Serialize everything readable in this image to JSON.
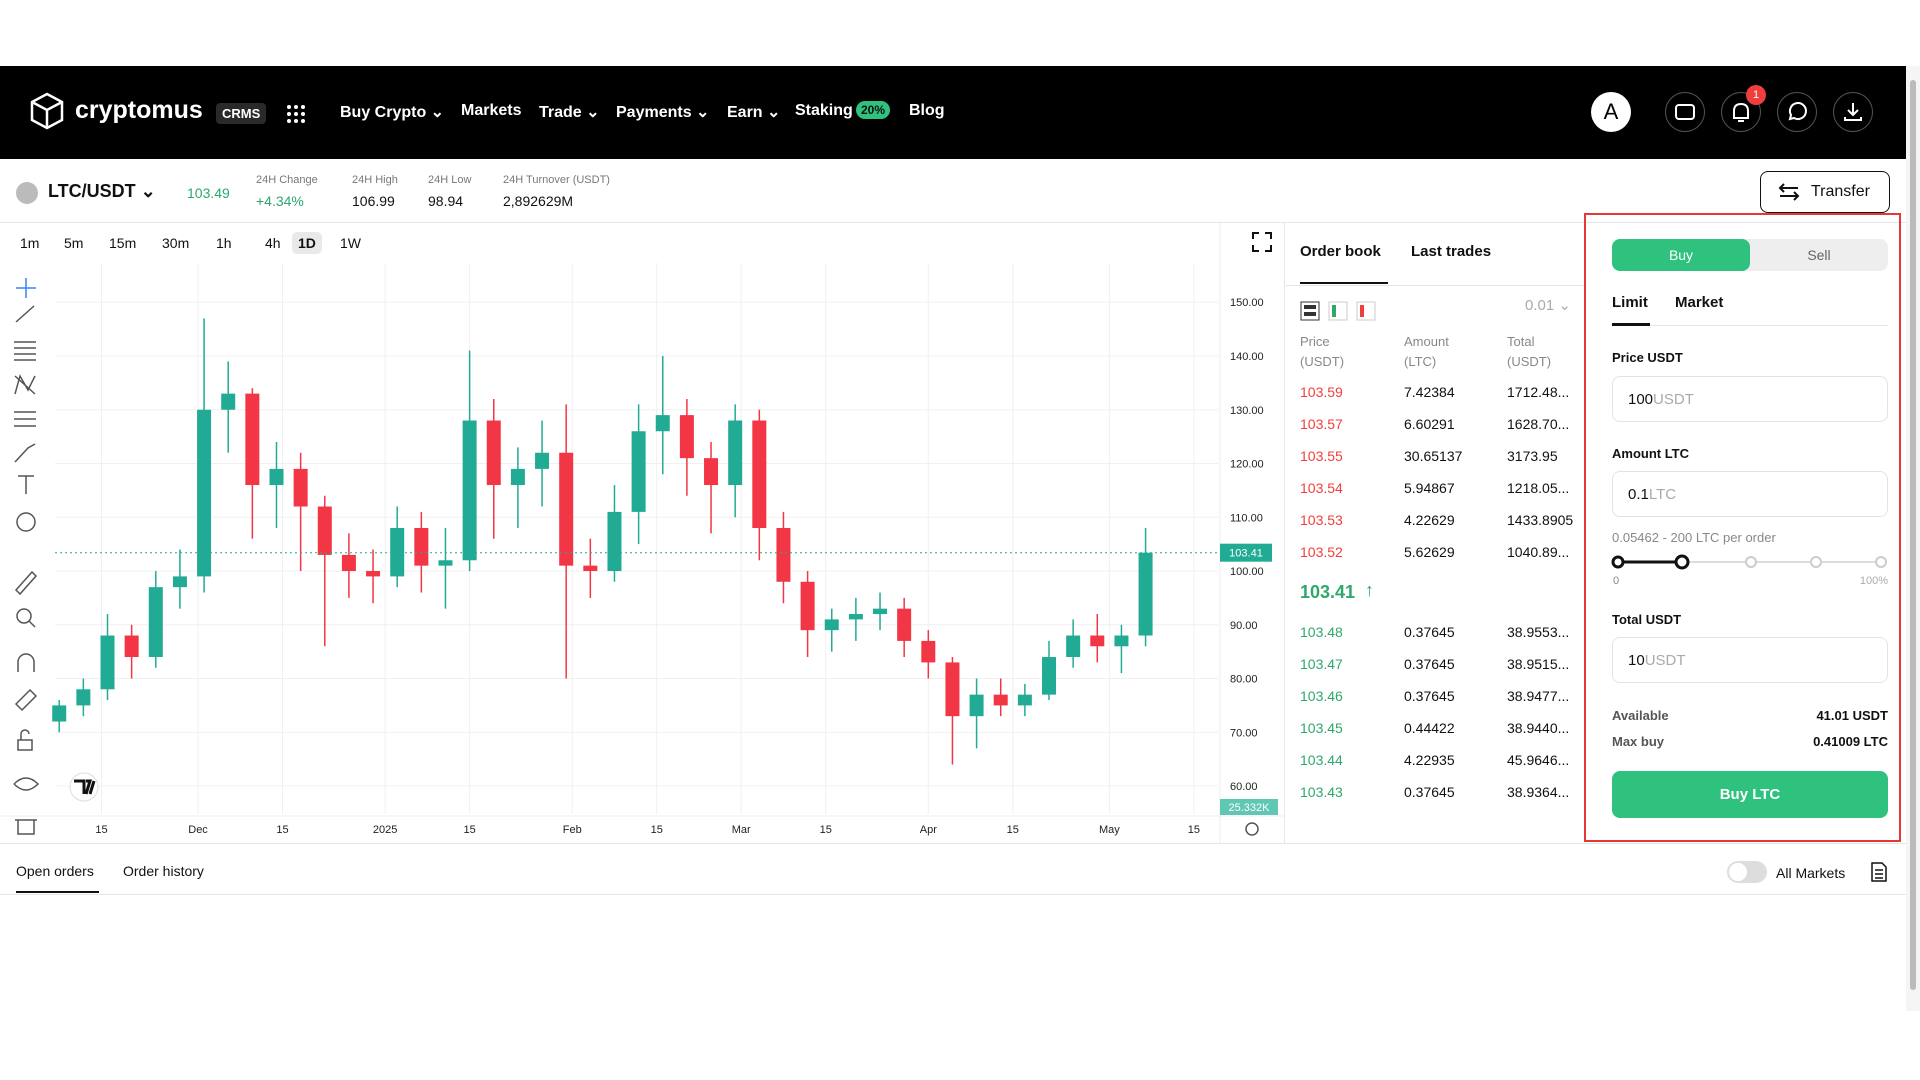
{
  "nav": {
    "logo": "cryptomus",
    "badge": "CRMS",
    "menu": [
      "Buy Crypto",
      "Markets",
      "Trade",
      "Payments",
      "Earn",
      "Staking",
      "Blog"
    ],
    "staking_badge": "20%",
    "avatar": "A",
    "notifications": "1"
  },
  "ticker": {
    "pair": "LTC/USDT",
    "price": "103.49",
    "stats": [
      {
        "label": "24H Change",
        "value": "+4.34%"
      },
      {
        "label": "24H High",
        "value": "106.99"
      },
      {
        "label": "24H Low",
        "value": "98.94"
      },
      {
        "label": "24H Turnover (USDT)",
        "value": "2,892629M"
      }
    ],
    "transfer": "Transfer"
  },
  "timeframes": {
    "items": [
      "1m",
      "5m",
      "15m",
      "30m",
      "1h",
      "4h",
      "1D",
      "1W"
    ],
    "active": "1D"
  },
  "chart_data": {
    "type": "candlestick",
    "up_color": "#22ab94",
    "down_color": "#f23645",
    "x": [
      0,
      4,
      8,
      12,
      16,
      20,
      24,
      28,
      32,
      36,
      40,
      44,
      48,
      52,
      56,
      60,
      64,
      68,
      72,
      76,
      80,
      84,
      88,
      92,
      96,
      100,
      104,
      108,
      112,
      116,
      120,
      124,
      128,
      132,
      136,
      140,
      144,
      148,
      152,
      156,
      160,
      164,
      168,
      172,
      176,
      180
    ],
    "open": [
      72,
      75,
      78,
      88,
      84,
      97,
      99,
      130,
      133,
      116,
      119,
      112,
      103,
      100,
      99,
      108,
      101,
      102,
      128,
      116,
      119,
      122,
      101,
      100,
      111,
      126,
      129,
      121,
      116,
      128,
      108,
      98,
      89,
      91,
      92,
      93,
      87,
      83,
      73,
      77,
      75,
      77,
      84,
      88,
      86,
      88
    ],
    "high": [
      76,
      80,
      92,
      90,
      100,
      104,
      147,
      139,
      134,
      124,
      122,
      114,
      107,
      104,
      112,
      111,
      108,
      141,
      132,
      123,
      128,
      131,
      106,
      116,
      131,
      140,
      132,
      124,
      131,
      130,
      111,
      100,
      93,
      95,
      96,
      95,
      89,
      84,
      80,
      80,
      79,
      87,
      91,
      92,
      90,
      108
    ],
    "low": [
      70,
      73,
      76,
      80,
      82,
      93,
      96,
      122,
      106,
      108,
      100,
      86,
      95,
      94,
      97,
      96,
      93,
      100,
      106,
      108,
      112,
      80,
      95,
      98,
      105,
      118,
      114,
      107,
      110,
      102,
      94,
      84,
      85,
      87,
      89,
      84,
      80,
      64,
      67,
      73,
      73,
      76,
      82,
      83,
      81,
      86
    ],
    "close": [
      75,
      78,
      88,
      84,
      97,
      99,
      130,
      133,
      116,
      119,
      112,
      103,
      100,
      99,
      108,
      101,
      102,
      128,
      116,
      119,
      122,
      101,
      100,
      111,
      126,
      129,
      121,
      116,
      128,
      108,
      98,
      89,
      91,
      92,
      93,
      87,
      83,
      73,
      77,
      75,
      77,
      84,
      88,
      86,
      88,
      103.41
    ],
    "xlim": [
      -0.7,
      192
    ],
    "xticks": [
      {
        "value": 7,
        "label": "15"
      },
      {
        "value": 23,
        "label": "Dec"
      },
      {
        "value": 37,
        "label": "15"
      },
      {
        "value": 54,
        "label": "2025"
      },
      {
        "value": 68,
        "label": "15"
      },
      {
        "value": 85,
        "label": "Feb"
      },
      {
        "value": 99,
        "label": "15"
      },
      {
        "value": 113,
        "label": "Mar"
      },
      {
        "value": 127,
        "label": "15"
      },
      {
        "value": 144,
        "label": "Apr"
      },
      {
        "value": 158,
        "label": "15"
      },
      {
        "value": 174,
        "label": "May"
      },
      {
        "value": 188,
        "label": "15"
      }
    ],
    "ylim": [
      54.8,
      157.3
    ],
    "yticks": [
      {
        "value": 60,
        "label": "60.00"
      },
      {
        "value": 70,
        "label": "70.00"
      },
      {
        "value": 80,
        "label": "80.00"
      },
      {
        "value": 90,
        "label": "90.00"
      },
      {
        "value": 100,
        "label": "100.00"
      },
      {
        "value": 110,
        "label": "110.00"
      },
      {
        "value": 120,
        "label": "120.00"
      },
      {
        "value": 130,
        "label": "130.00"
      },
      {
        "value": 140,
        "label": "140.00"
      },
      {
        "value": 150,
        "label": "150.00"
      }
    ],
    "grid": true,
    "last_price": {
      "value": 103.41,
      "label": "103.41"
    },
    "volume_label": "25.332K"
  },
  "order_book": {
    "tabs": [
      "Order book",
      "Last trades"
    ],
    "step": "0.01",
    "headers": [
      [
        "Price",
        "(USDT)"
      ],
      [
        "Amount",
        "(LTC)"
      ],
      [
        "Total",
        "(USDT)"
      ]
    ],
    "asks": [
      [
        "103.59",
        "7.42384",
        "1712.48..."
      ],
      [
        "103.57",
        "6.60291",
        "1628.70..."
      ],
      [
        "103.55",
        "30.65137",
        "3173.95"
      ],
      [
        "103.54",
        "5.94867",
        "1218.05..."
      ],
      [
        "103.53",
        "4.22629",
        "1433.8905"
      ],
      [
        "103.52",
        "5.62629",
        "1040.89..."
      ]
    ],
    "last_price": "103.41",
    "bids": [
      [
        "103.48",
        "0.37645",
        "38.9553..."
      ],
      [
        "103.47",
        "0.37645",
        "38.9515..."
      ],
      [
        "103.46",
        "0.37645",
        "38.9477..."
      ],
      [
        "103.45",
        "0.44422",
        "38.9440..."
      ],
      [
        "103.44",
        "4.22935",
        "45.9646..."
      ],
      [
        "103.43",
        "0.37645",
        "38.9364..."
      ]
    ]
  },
  "trade_panel": {
    "sides": [
      "Buy",
      "Sell"
    ],
    "order_types": [
      "Limit",
      "Market"
    ],
    "price_label": "Price USDT",
    "price_value": "100",
    "price_unit": "USDT",
    "amount_label": "Amount LTC",
    "amount_value": "0.1",
    "amount_unit": "LTC",
    "limits": "0.05462 - 200 LTC per order",
    "slider_min": "0",
    "slider_max": "100%",
    "total_label": "Total USDT",
    "total_value": "10",
    "total_unit": "USDT",
    "available_label": "Available",
    "available_value": "41.01 USDT",
    "max_buy_label": "Max buy",
    "max_buy_value": "0.41009 LTC",
    "submit": "Buy LTC"
  },
  "bottom": {
    "tabs": [
      "Open orders",
      "Order history"
    ],
    "toggle": "All Markets"
  }
}
